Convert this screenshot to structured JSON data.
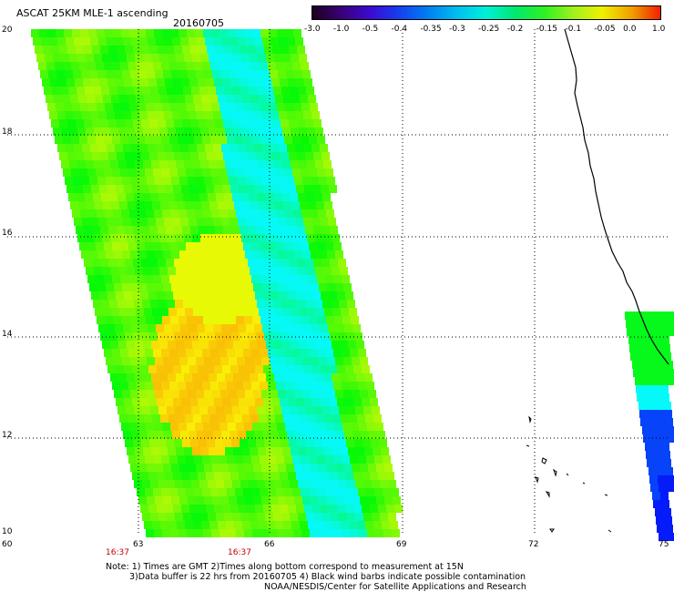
{
  "title": "ASCAT 25KM MLE-1 ascending",
  "date": "20160705",
  "colorbar": {
    "labels": [
      "-3.0",
      "-1.0",
      "-0.5",
      "-0.4",
      "-0.35",
      "-0.3",
      "-0.25",
      "-0.2",
      "-0.15",
      "-0.1",
      "-0.05",
      "0.0",
      "1.0"
    ],
    "colors": [
      "#1a0020",
      "#3a0078",
      "#3b0bd0",
      "#1540f0",
      "#007ff0",
      "#00c0f0",
      "#00f0d8",
      "#00e870",
      "#30f020",
      "#a0f020",
      "#f0f000",
      "#f0a000",
      "#f02000"
    ]
  },
  "axes": {
    "x_ticks": [
      "60",
      "63",
      "66",
      "69",
      "72",
      "75"
    ],
    "y_ticks": [
      "10",
      "12",
      "14",
      "16",
      "18",
      "20"
    ],
    "time_labels": [
      "16:37",
      "16:37"
    ]
  },
  "notes": [
    "Note: 1) Times are GMT 2)Times along bottom correspond to measurement at 15N",
    "3)Data buffer is 22 hrs from 20160705 4) Black wind barbs indicate possible contamination",
    "NOAA/NESDIS/Center for Satellite Applications and Research"
  ]
}
